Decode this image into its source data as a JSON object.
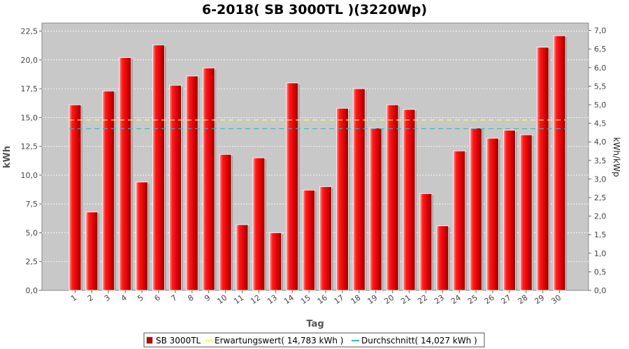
{
  "chart_data": {
    "type": "bar",
    "title": "6-2018( SB 3000TL )(3220Wp)",
    "xlabel": "Tag",
    "ylabel": "kWh",
    "ylabel_right": "kWh/kWp",
    "categories": [
      "1",
      "2",
      "3",
      "4",
      "5",
      "6",
      "7",
      "8",
      "9",
      "10",
      "11",
      "12",
      "13",
      "14",
      "15",
      "16",
      "17",
      "18",
      "19",
      "20",
      "21",
      "22",
      "23",
      "24",
      "25",
      "26",
      "27",
      "28",
      "29",
      "30"
    ],
    "series": [
      {
        "name": "SB 3000TL",
        "color": "#e00000",
        "values": [
          16.1,
          6.8,
          17.3,
          20.2,
          9.4,
          21.3,
          17.8,
          18.6,
          19.3,
          11.8,
          5.7,
          11.5,
          5.0,
          18.0,
          8.7,
          9.0,
          15.8,
          17.5,
          14.1,
          16.1,
          15.7,
          8.4,
          5.6,
          12.1,
          14.1,
          13.2,
          13.9,
          13.5,
          21.1,
          22.1
        ]
      }
    ],
    "reference_lines": [
      {
        "name": "Erwartungswert",
        "value": 14.783,
        "color": "#ffff66",
        "legend_label": "Erwartungswert( 14,783 kWh )"
      },
      {
        "name": "Durchschnitt",
        "value": 14.027,
        "color": "#33bbbb",
        "legend_label": "Durchschnitt( 14,027 kWh )"
      }
    ],
    "ylim": [
      0,
      23.2
    ],
    "yticks": [
      "0,0",
      "2,5",
      "5,0",
      "7,5",
      "10,0",
      "12,5",
      "15,0",
      "17,5",
      "20,0",
      "22,5"
    ],
    "ytick_values": [
      0,
      2.5,
      5,
      7.5,
      10,
      12.5,
      15,
      17.5,
      20,
      22.5
    ],
    "y2lim": [
      0,
      7.2
    ],
    "y2ticks": [
      "0,0",
      "0,5",
      "1,0",
      "1,5",
      "2,0",
      "2,5",
      "3,0",
      "3,5",
      "4,0",
      "4,5",
      "5,0",
      "5,5",
      "6,0",
      "6,5",
      "7,0"
    ],
    "y2tick_values": [
      0,
      0.5,
      1,
      1.5,
      2,
      2.5,
      3,
      3.5,
      4,
      4.5,
      5,
      5.5,
      6,
      6.5,
      7
    ],
    "grid": true,
    "legend_position": "bottom",
    "legend_label": "SB 3000TL",
    "plot_background": "#c8c8c8"
  }
}
